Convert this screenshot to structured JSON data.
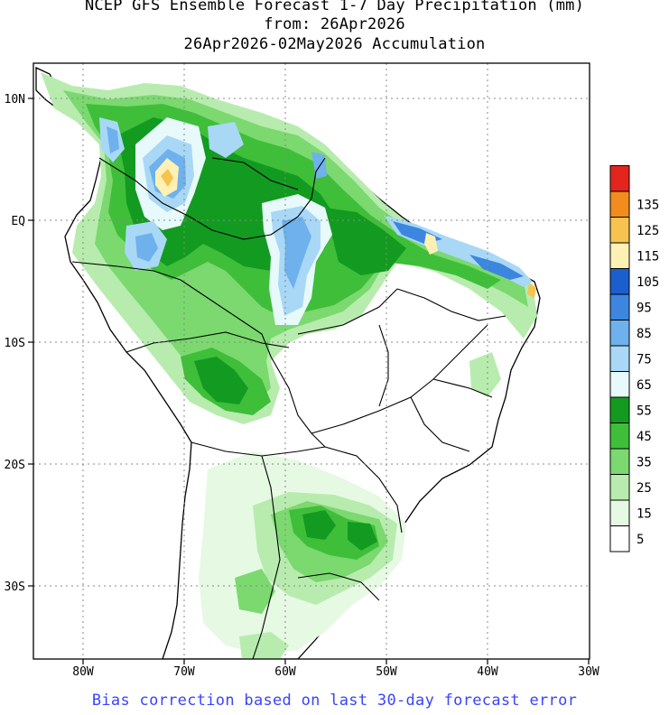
{
  "title": {
    "line1": "NCEP GFS Ensemble Forecast 1-7 Day Precipitation (mm)",
    "line2": "from: 26Apr2026",
    "line3": "26Apr2026-02May2026 Accumulation"
  },
  "footer": "Bias correction based on last 30-day forecast error",
  "map": {
    "region": "South America",
    "lon_range": [
      -85,
      -30
    ],
    "lat_range": [
      -36,
      13
    ],
    "lon_ticks": [
      {
        "value": -80,
        "label": "80W"
      },
      {
        "value": -70,
        "label": "70W"
      },
      {
        "value": -60,
        "label": "60W"
      },
      {
        "value": -50,
        "label": "50W"
      },
      {
        "value": -40,
        "label": "40W"
      },
      {
        "value": -30,
        "label": "30W"
      }
    ],
    "lat_ticks": [
      {
        "value": 10,
        "label": "10N"
      },
      {
        "value": 0,
        "label": "EQ"
      },
      {
        "value": -10,
        "label": "10S"
      },
      {
        "value": -20,
        "label": "20S"
      },
      {
        "value": -30,
        "label": "30S"
      }
    ],
    "gridlines": "dotted"
  },
  "legend": {
    "unit": "mm",
    "bins": [
      {
        "label": "5",
        "color": "#ffffff"
      },
      {
        "label": "15",
        "color": "#e6f9e3"
      },
      {
        "label": "25",
        "color": "#b7ecae"
      },
      {
        "label": "35",
        "color": "#7bd96f"
      },
      {
        "label": "45",
        "color": "#3fbe3a"
      },
      {
        "label": "55",
        "color": "#129b20"
      },
      {
        "label": "65",
        "color": "#e7f9fa"
      },
      {
        "label": "75",
        "color": "#a8d8f6"
      },
      {
        "label": "85",
        "color": "#6eb1ec"
      },
      {
        "label": "95",
        "color": "#3c86df"
      },
      {
        "label": "105",
        "color": "#1a5fcd"
      },
      {
        "label": "115",
        "color": "#fff1b4"
      },
      {
        "label": "125",
        "color": "#f6c350"
      },
      {
        "label": "135",
        "color": "#f28c1c"
      },
      {
        "label": "",
        "color": "#e2261d"
      }
    ]
  }
}
